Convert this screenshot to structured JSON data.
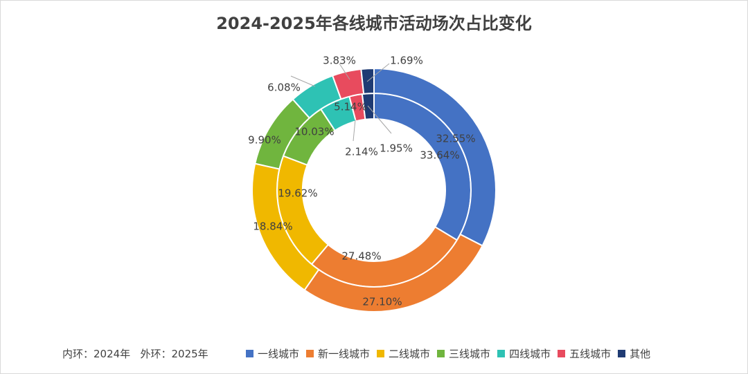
{
  "chart_data": {
    "type": "doughnut",
    "title": "2024-2025年各线城市活动场次占比变化",
    "categories": [
      "一线城市",
      "新一线城市",
      "二线城市",
      "三线城市",
      "四线城市",
      "五线城市",
      "其他"
    ],
    "colors": [
      "#4472C4",
      "#ED7D31",
      "#F0B800",
      "#70B53E",
      "#2EC2B4",
      "#E84B5E",
      "#1F3B73"
    ],
    "series": [
      {
        "name": "内环：2024年",
        "ring": "inner",
        "values": [
          33.64,
          27.48,
          19.62,
          10.03,
          5.14,
          2.14,
          1.95
        ],
        "labels": [
          "33.64%",
          "27.48%",
          "19.62%",
          "10.03%",
          "5.14%",
          "2.14%",
          "1.95%"
        ]
      },
      {
        "name": "外环：2025年",
        "ring": "outer",
        "values": [
          32.55,
          27.1,
          18.84,
          9.9,
          6.08,
          3.83,
          1.69
        ],
        "labels": [
          "32.55%",
          "27.10%",
          "18.84%",
          "9.90%",
          "6.08%",
          "3.83%",
          "1.69%"
        ]
      }
    ],
    "note": "内环：2024年   外环：2025年",
    "legend_position": "bottom"
  }
}
